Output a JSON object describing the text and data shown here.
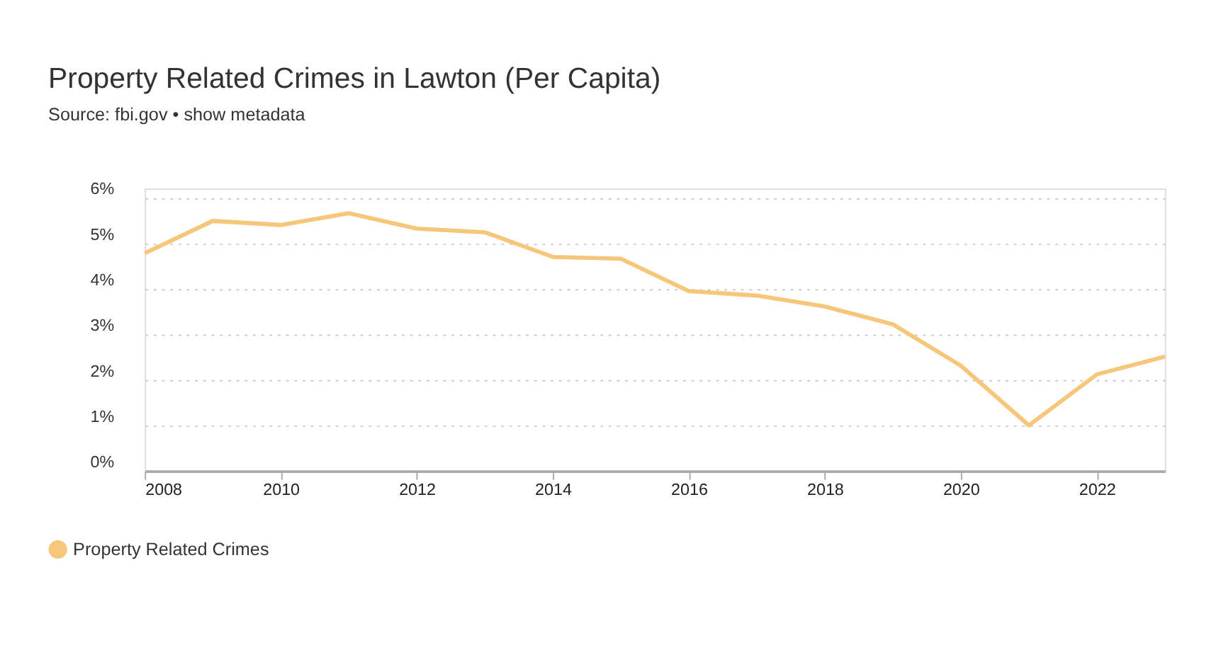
{
  "chart_data": {
    "type": "line",
    "title": "Property Related Crimes in Lawton (Per Capita)",
    "subtitle": "Source: fbi.gov • show metadata",
    "x": [
      2008,
      2009,
      2010,
      2011,
      2012,
      2013,
      2014,
      2015,
      2016,
      2017,
      2018,
      2019,
      2020,
      2021,
      2022,
      2023
    ],
    "series": [
      {
        "name": "Property Related Crimes",
        "color": "#f6c77a",
        "values": [
          4.78,
          5.49,
          5.4,
          5.66,
          5.32,
          5.24,
          4.7,
          4.66,
          3.95,
          3.85,
          3.61,
          3.22,
          2.31,
          1.0,
          2.12,
          2.51
        ]
      }
    ],
    "xlim": [
      2008,
      2023
    ],
    "xticks": [
      2008,
      2010,
      2012,
      2014,
      2016,
      2018,
      2020,
      2022
    ],
    "ylim": [
      0,
      6.2
    ],
    "yticks": [
      {
        "value": 0,
        "label": "0%"
      },
      {
        "value": 1,
        "label": "1%"
      },
      {
        "value": 2,
        "label": "2%"
      },
      {
        "value": 3,
        "label": "3%"
      },
      {
        "value": 4,
        "label": "4%"
      },
      {
        "value": 5,
        "label": "5%"
      },
      {
        "value": 6,
        "label": "6%"
      }
    ],
    "grid": "y",
    "legend": "bottom left",
    "marker": "none",
    "line_style": "solid"
  }
}
